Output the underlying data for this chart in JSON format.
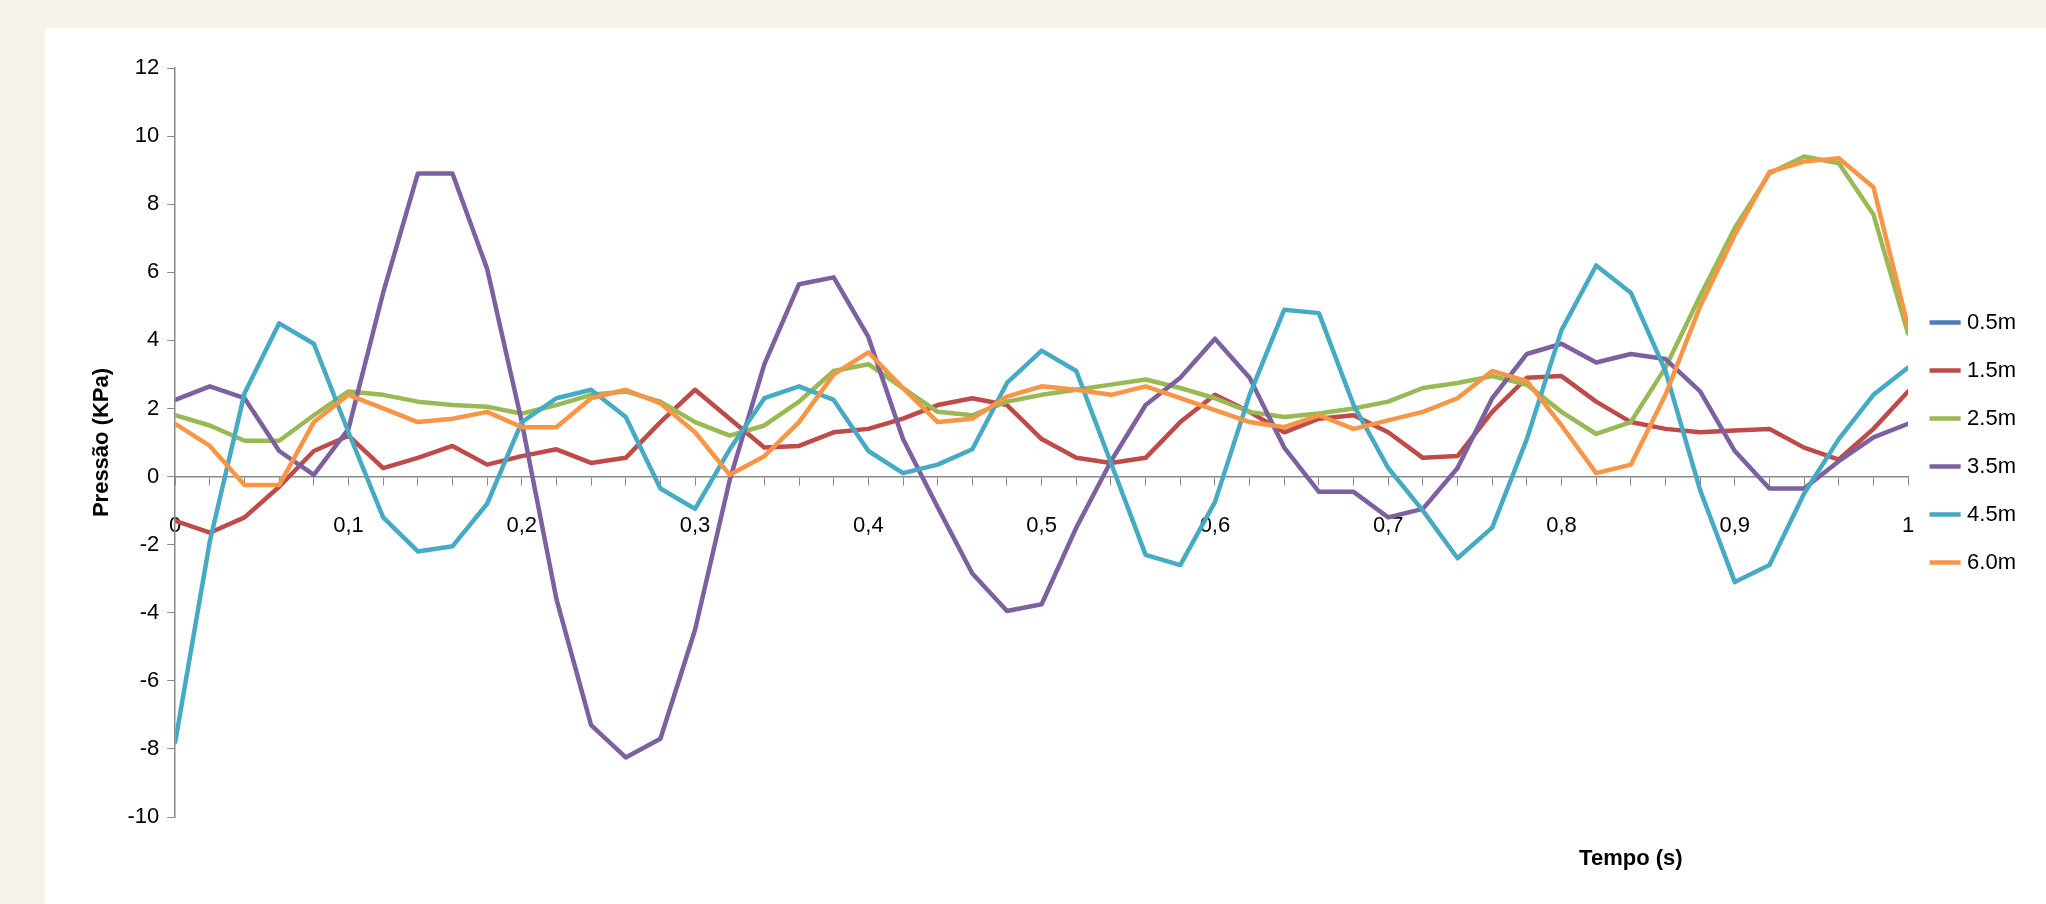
{
  "chart_data": {
    "type": "line",
    "xlabel": "Tempo (s)",
    "ylabel": "Pressão (KPa)",
    "x": [
      0,
      0.02,
      0.04,
      0.06,
      0.08,
      0.1,
      0.12,
      0.14,
      0.16,
      0.18,
      0.2,
      0.22,
      0.24,
      0.26,
      0.28,
      0.3,
      0.32,
      0.34,
      0.36,
      0.38,
      0.4,
      0.42,
      0.44,
      0.46,
      0.48,
      0.5,
      0.52,
      0.54,
      0.56,
      0.58,
      0.6,
      0.62,
      0.64,
      0.66,
      0.68,
      0.7,
      0.72,
      0.74,
      0.76,
      0.78,
      0.8,
      0.82,
      0.84,
      0.86,
      0.88,
      0.9,
      0.92,
      0.94,
      0.96,
      0.98,
      1
    ],
    "series": [
      {
        "name": "0.5m",
        "color": "#4a7ebb",
        "values": [
          null,
          null,
          null,
          null,
          null,
          null,
          null,
          null,
          null,
          null,
          null,
          null,
          null,
          null,
          null,
          null,
          null,
          null,
          null,
          null,
          null,
          null,
          null,
          null,
          null,
          null,
          null,
          null,
          null,
          null,
          null,
          null,
          null,
          null,
          null,
          null,
          null,
          null,
          null,
          null,
          null,
          null,
          null,
          null,
          null,
          null,
          null,
          null,
          null,
          null,
          null
        ]
      },
      {
        "name": "1.5m",
        "color": "#be4b48",
        "values": [
          -1.3,
          -1.65,
          -1.2,
          -0.3,
          0.75,
          1.2,
          0.25,
          0.55,
          0.9,
          0.35,
          0.6,
          0.8,
          0.4,
          0.55,
          1.6,
          2.55,
          1.7,
          0.85,
          0.9,
          1.3,
          1.4,
          1.7,
          2.1,
          2.3,
          2.1,
          1.1,
          0.55,
          0.4,
          0.55,
          1.6,
          2.4,
          1.9,
          1.3,
          1.7,
          1.8,
          1.3,
          0.55,
          0.6,
          1.9,
          2.9,
          2.95,
          2.2,
          1.6,
          1.4,
          1.3,
          1.35,
          1.4,
          0.85,
          0.5,
          1.4,
          2.5
        ]
      },
      {
        "name": "2.5m",
        "color": "#98b954",
        "values": [
          1.8,
          1.5,
          1.05,
          1.05,
          1.8,
          2.5,
          2.4,
          2.2,
          2.1,
          2.05,
          1.85,
          2.1,
          2.4,
          2.5,
          2.2,
          1.6,
          1.2,
          1.5,
          2.2,
          3.1,
          3.3,
          2.6,
          1.9,
          1.8,
          2.2,
          2.4,
          2.55,
          2.7,
          2.85,
          2.6,
          2.3,
          1.9,
          1.75,
          1.85,
          2,
          2.2,
          2.6,
          2.75,
          2.95,
          2.7,
          1.9,
          1.25,
          1.6,
          3.2,
          5.3,
          7.3,
          8.9,
          9.4,
          9.2,
          7.7,
          4.2
        ]
      },
      {
        "name": "3.5m",
        "color": "#7d60a0",
        "values": [
          2.25,
          2.65,
          2.3,
          0.75,
          0.05,
          1.4,
          5.4,
          8.9,
          8.9,
          6.1,
          1.6,
          -3.6,
          -7.3,
          -8.25,
          -7.7,
          -4.5,
          -0.1,
          3.3,
          5.65,
          5.85,
          4.1,
          1.1,
          -0.9,
          -2.85,
          -3.95,
          -3.75,
          -1.5,
          0.45,
          2.1,
          2.9,
          4.05,
          2.9,
          0.85,
          -0.45,
          -0.45,
          -1.2,
          -0.95,
          0.25,
          2.3,
          3.6,
          3.9,
          3.35,
          3.6,
          3.45,
          2.5,
          0.75,
          -0.35,
          -0.35,
          0.45,
          1.15,
          1.55
        ]
      },
      {
        "name": "4.5m",
        "color": "#46aac5",
        "values": [
          -7.8,
          -1.9,
          2.45,
          4.5,
          3.9,
          1.3,
          -1.2,
          -2.2,
          -2.05,
          -0.8,
          1.6,
          2.3,
          2.55,
          1.75,
          -0.35,
          -0.95,
          0.8,
          2.3,
          2.65,
          2.25,
          0.75,
          0.1,
          0.35,
          0.8,
          2.75,
          3.7,
          3.1,
          0.4,
          -2.3,
          -2.6,
          -0.75,
          2.4,
          4.9,
          4.8,
          2.1,
          0.25,
          -1,
          -2.4,
          -1.5,
          1.1,
          4.3,
          6.2,
          5.4,
          3.1,
          -0.4,
          -3.1,
          -2.6,
          -0.5,
          1.1,
          2.4,
          3.2
        ]
      },
      {
        "name": "6.0m",
        "color": "#f79646",
        "values": [
          1.55,
          0.9,
          -0.25,
          -0.25,
          1.6,
          2.4,
          2,
          1.6,
          1.7,
          1.9,
          1.45,
          1.45,
          2.3,
          2.55,
          2.15,
          1.3,
          0.05,
          0.6,
          1.6,
          3,
          3.65,
          2.6,
          1.6,
          1.7,
          2.35,
          2.65,
          2.55,
          2.4,
          2.65,
          2.3,
          1.95,
          1.6,
          1.45,
          1.8,
          1.4,
          1.65,
          1.9,
          2.3,
          3.1,
          2.8,
          1.5,
          0.1,
          0.35,
          2.4,
          5,
          7.1,
          8.95,
          9.25,
          9.35,
          8.5,
          4.4
        ]
      }
    ],
    "xlim": [
      0,
      1
    ],
    "xticks": [
      0,
      {
        "value": 0.02,
        "label": null
      },
      {
        "value": 0.04,
        "label": null
      },
      {
        "value": 0.06,
        "label": null
      },
      {
        "value": 0.08,
        "label": null
      },
      {
        "value": 0.1,
        "label": "0,1"
      },
      {
        "value": 0.12,
        "label": null
      },
      {
        "value": 0.14,
        "label": null
      },
      {
        "value": 0.16,
        "label": null
      },
      {
        "value": 0.18,
        "label": null
      },
      {
        "value": 0.2,
        "label": "0,2"
      },
      {
        "value": 0.22,
        "label": null
      },
      {
        "value": 0.24,
        "label": null
      },
      {
        "value": 0.26,
        "label": null
      },
      {
        "value": 0.28,
        "label": null
      },
      {
        "value": 0.3,
        "label": "0,3"
      },
      {
        "value": 0.32,
        "label": null
      },
      {
        "value": 0.34,
        "label": null
      },
      {
        "value": 0.36,
        "label": null
      },
      {
        "value": 0.38,
        "label": null
      },
      {
        "value": 0.4,
        "label": "0,4"
      },
      {
        "value": 0.42,
        "label": null
      },
      {
        "value": 0.44,
        "label": null
      },
      {
        "value": 0.46,
        "label": null
      },
      {
        "value": 0.48,
        "label": null
      },
      {
        "value": 0.5,
        "label": "0,5"
      },
      {
        "value": 0.52,
        "label": null
      },
      {
        "value": 0.54,
        "label": null
      },
      {
        "value": 0.56,
        "label": null
      },
      {
        "value": 0.58,
        "label": null
      },
      {
        "value": 0.6,
        "label": "0,6"
      },
      {
        "value": 0.62,
        "label": null
      },
      {
        "value": 0.64,
        "label": null
      },
      {
        "value": 0.66,
        "label": null
      },
      {
        "value": 0.68,
        "label": null
      },
      {
        "value": 0.7,
        "label": "0,7"
      },
      {
        "value": 0.72,
        "label": null
      },
      {
        "value": 0.74,
        "label": null
      },
      {
        "value": 0.76,
        "label": null
      },
      {
        "value": 0.78,
        "label": null
      },
      {
        "value": 0.8,
        "label": "0,8"
      },
      {
        "value": 0.82,
        "label": null
      },
      {
        "value": 0.84,
        "label": null
      },
      {
        "value": 0.86,
        "label": null
      },
      {
        "value": 0.88,
        "label": null
      },
      {
        "value": 0.9,
        "label": "0,9"
      },
      {
        "value": 0.92,
        "label": null
      },
      {
        "value": 0.94,
        "label": null
      },
      {
        "value": 0.96,
        "label": null
      },
      {
        "value": 0.98,
        "label": null
      },
      1
    ],
    "ylim": [
      -10,
      12
    ],
    "yticks": [
      -10,
      -8,
      -6,
      -4,
      -2,
      0,
      2,
      4,
      6,
      8,
      10,
      12
    ],
    "grid": false,
    "legend": "right",
    "marker": "none",
    "line_style": "solid"
  }
}
